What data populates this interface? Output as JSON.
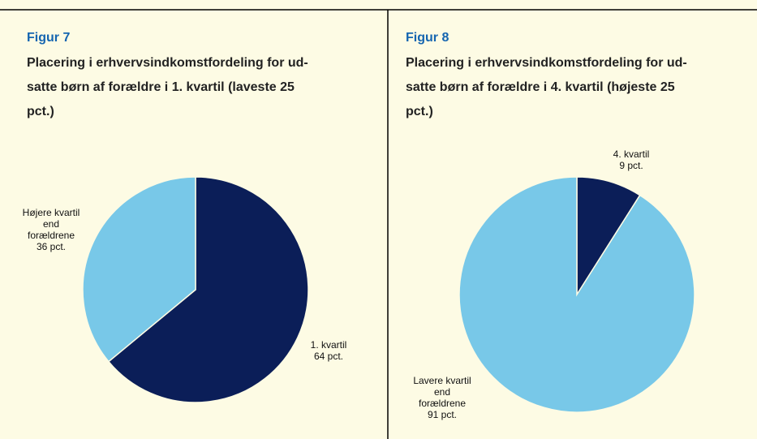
{
  "chart_data": [
    {
      "type": "pie",
      "figure_label": "Figur 7",
      "title": [
        "Placering i erhvervsindkomstfordeling for ud-",
        "satte børn af forældre i 1. kvartil (laveste 25",
        "pct.)"
      ],
      "categories": [
        "1. kvartil",
        "Højere kvartil end forældrene"
      ],
      "values": [
        64,
        36
      ],
      "value_labels": [
        "64 pct.",
        "36 pct."
      ],
      "colors": [
        "#0b1e58",
        "#78c8e8"
      ]
    },
    {
      "type": "pie",
      "figure_label": "Figur 8",
      "title": [
        "Placering i erhvervsindkomstfordeling for ud-",
        "satte børn af forældre i 4. kvartil (højeste 25",
        "pct.)"
      ],
      "categories": [
        "4. kvartil",
        "Lavere kvartil end forældrene"
      ],
      "values": [
        9,
        91
      ],
      "value_labels": [
        "9 pct.",
        "91 pct."
      ],
      "colors": [
        "#0b1e58",
        "#78c8e8"
      ]
    }
  ]
}
